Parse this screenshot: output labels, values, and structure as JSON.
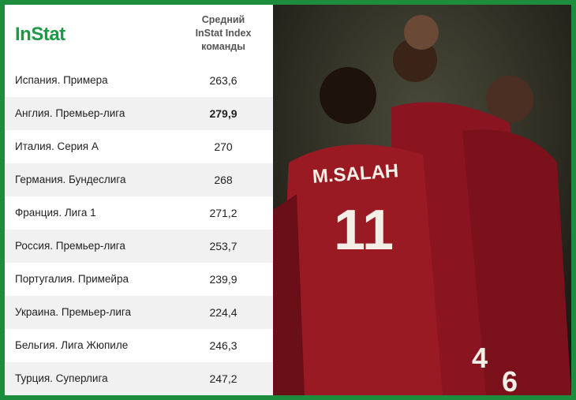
{
  "header": {
    "logo": "InStat",
    "column_title": [
      "Средний",
      "InStat Index",
      "команды"
    ]
  },
  "table": {
    "rows": [
      {
        "league": "Испания. Примера",
        "value": "263,6",
        "bold": false
      },
      {
        "league": "Англия. Премьер-лига",
        "value": "279,9",
        "bold": true
      },
      {
        "league": "Италия. Серия А",
        "value": "270",
        "bold": false
      },
      {
        "league": "Германия. Бундеслига",
        "value": "268",
        "bold": false
      },
      {
        "league": "Франция. Лига 1",
        "value": "271,2",
        "bold": false
      },
      {
        "league": "Россия. Премьер-лига",
        "value": "253,7",
        "bold": false
      },
      {
        "league": "Португалия. Примейра",
        "value": "239,9",
        "bold": false
      },
      {
        "league": "Украина. Премьер-лига",
        "value": "224,4",
        "bold": false
      },
      {
        "league": "Бельгия. Лига Жюпиле",
        "value": "246,3",
        "bold": false
      },
      {
        "league": "Турция. Суперлига",
        "value": "247,2",
        "bold": false
      }
    ]
  },
  "photo": {
    "jersey_name": "M.SALAH",
    "jersey_numbers": [
      "11",
      "4",
      "6"
    ]
  }
}
